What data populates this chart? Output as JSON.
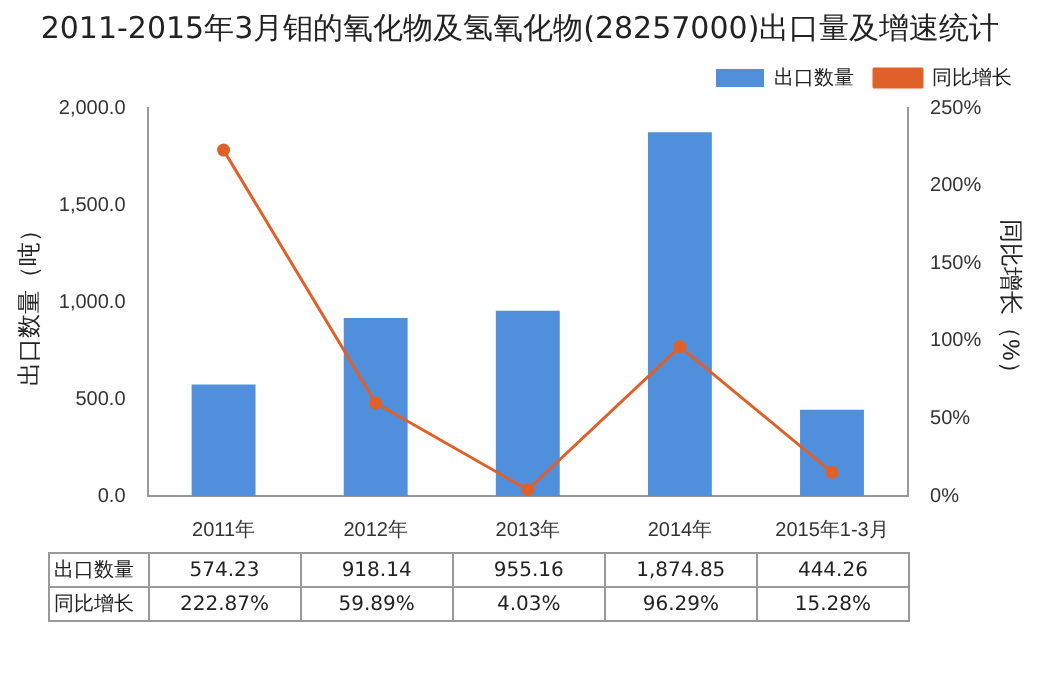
{
  "chart_data": {
    "type": "bar",
    "title": "2011-2015年3月钼的氧化物及氢氧化物(28257000)出口量及增速统计",
    "ylabel": "出口数量（吨）",
    "y2label": "同比增长（%）",
    "categories": [
      "2011年",
      "2012年",
      "2013年",
      "2014年",
      "2015年1-3月"
    ],
    "series": [
      {
        "name": "出口数量",
        "color": "#4f8fdc",
        "values": [
          574.23,
          918.14,
          955.16,
          1874.85,
          444.26
        ],
        "value_labels": [
          "574.23",
          "918.14",
          "955.16",
          "1,874.85",
          "444.26"
        ]
      },
      {
        "name": "同比增长",
        "type": "line",
        "axis": "y2",
        "color": "#e0602a",
        "values": [
          222.87,
          59.89,
          4.03,
          96.29,
          15.28
        ],
        "value_labels": [
          "222.87%",
          "59.89%",
          "4.03%",
          "96.29%",
          "15.28%"
        ]
      }
    ],
    "ylim": [
      0,
      2000
    ],
    "yticks": [
      {
        "value": 0,
        "label": "0.0"
      },
      {
        "value": 500,
        "label": "500.0"
      },
      {
        "value": 1000,
        "label": "1,000.0"
      },
      {
        "value": 1500,
        "label": "1,500.0"
      },
      {
        "value": 2000,
        "label": "2,000.0"
      }
    ],
    "y2lim": [
      0,
      250
    ],
    "y2ticks": [
      {
        "value": 0,
        "label": "0%"
      },
      {
        "value": 50,
        "label": "50%"
      },
      {
        "value": 100,
        "label": "100%"
      },
      {
        "value": 150,
        "label": "150%"
      },
      {
        "value": 200,
        "label": "200%"
      },
      {
        "value": 250,
        "label": "250%"
      }
    ],
    "legend": "top right",
    "marker": "circle"
  }
}
